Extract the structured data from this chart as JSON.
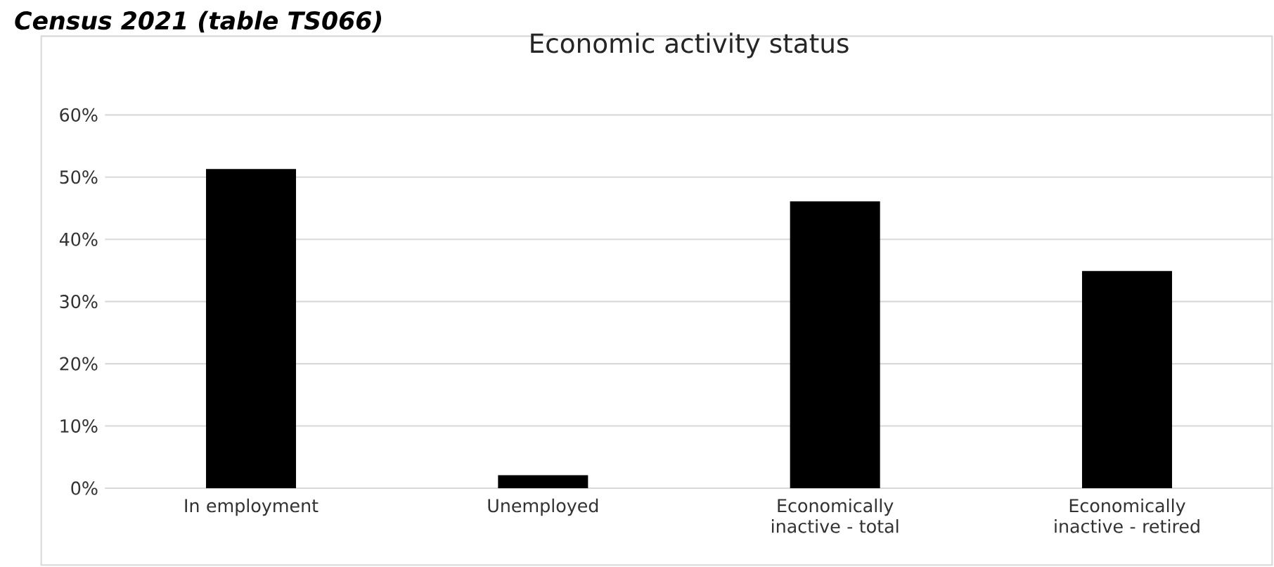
{
  "chart_data": {
    "type": "bar",
    "title": "Economic activity status",
    "annotations": [
      "Census 2021 (table TS066)"
    ],
    "categories": [
      "In employment",
      "Unemployed",
      "Economically inactive - total",
      "Economically inactive - retired"
    ],
    "values": [
      51.3,
      2.1,
      46.1,
      34.9
    ],
    "color": "#000000",
    "ylim": [
      0,
      60
    ],
    "yticks": [
      {
        "value": 0,
        "label": "0%"
      },
      {
        "value": 10,
        "label": "10%"
      },
      {
        "value": 20,
        "label": "20%"
      },
      {
        "value": 30,
        "label": "30%"
      },
      {
        "value": 40,
        "label": "40%"
      },
      {
        "value": 50,
        "label": "50%"
      },
      {
        "value": 60,
        "label": "60%"
      }
    ],
    "grid": "y"
  }
}
